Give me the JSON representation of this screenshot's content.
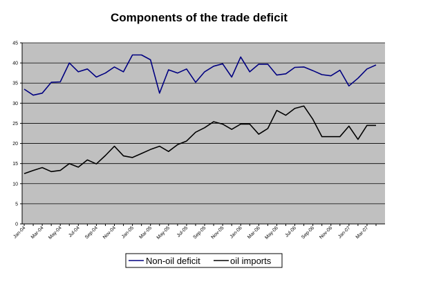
{
  "chart_data": {
    "type": "line",
    "title": "Components of the trade deficit",
    "xlabel": "",
    "ylabel": "",
    "ylim": [
      0,
      45
    ],
    "yticks": [
      0,
      5,
      10,
      15,
      20,
      25,
      30,
      35,
      40,
      45
    ],
    "grid": true,
    "legend_position": "bottom",
    "plot_background": "#c0c0c0",
    "x": [
      "Jan-04",
      "Feb-04",
      "Mar-04",
      "Apr-04",
      "May-04",
      "Jun-04",
      "Jul-04",
      "Aug-04",
      "Sep-04",
      "Oct-04",
      "Nov-04",
      "Dec-04",
      "Jan-05",
      "Feb-05",
      "Mar-05",
      "Apr-05",
      "May-05",
      "Jun-05",
      "Jul-05",
      "Aug-05",
      "Sep-05",
      "Oct-05",
      "Nov-05",
      "Dec-05",
      "Jan-06",
      "Feb-06",
      "Mar-06",
      "Apr-06",
      "May-06",
      "Jun-06",
      "Jul-06",
      "Aug-06",
      "Sep-06",
      "Oct-06",
      "Nov-06",
      "Dec-06",
      "Jan-07",
      "Feb-07",
      "Mar-07",
      "Apr-07"
    ],
    "x_tick_labels": [
      "Jan-04",
      "Mar-04",
      "May-04",
      "Jul-04",
      "Sep-04",
      "Nov-04",
      "Jan-05",
      "Mar-05",
      "May-05",
      "Jul-05",
      "Sep-05",
      "Nov-05",
      "Jan-06",
      "Mar-06",
      "May-06",
      "Jul-06",
      "Sep-06",
      "Nov-06",
      "Jan-07",
      "Mar-07"
    ],
    "series": [
      {
        "name": "Non-oil deficit",
        "color": "#000080",
        "values": [
          33.5,
          32.0,
          32.5,
          35.2,
          35.3,
          40.0,
          37.8,
          38.5,
          36.5,
          37.5,
          39.0,
          37.8,
          42.0,
          42.0,
          40.8,
          32.5,
          38.3,
          37.5,
          38.5,
          35.2,
          37.8,
          39.2,
          39.8,
          36.5,
          41.5,
          37.8,
          39.7,
          39.7,
          37.0,
          37.3,
          38.9,
          39.0,
          38.1,
          37.1,
          36.8,
          38.2,
          34.3,
          36.2,
          38.5,
          39.5
        ]
      },
      {
        "name": "oil imports",
        "color": "#000000",
        "values": [
          12.5,
          13.3,
          14.0,
          13.0,
          13.3,
          15.0,
          14.1,
          15.9,
          14.9,
          17.0,
          19.3,
          16.9,
          16.5,
          17.5,
          18.5,
          19.3,
          18.0,
          19.7,
          20.6,
          22.8,
          23.9,
          25.4,
          24.8,
          23.5,
          24.8,
          24.8,
          22.3,
          23.7,
          28.2,
          27.0,
          28.7,
          29.3,
          26.0,
          21.7,
          21.7,
          21.7,
          24.3,
          21.0,
          24.5,
          24.5
        ]
      }
    ]
  }
}
